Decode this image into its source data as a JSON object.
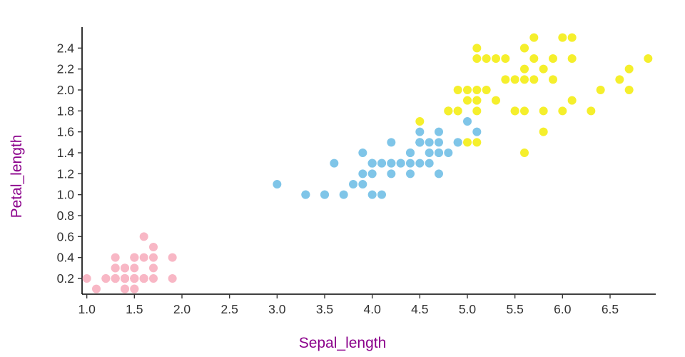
{
  "chart_data": {
    "type": "scatter",
    "title": "",
    "xlabel": "Sepal_length",
    "ylabel": "Petal_length",
    "xlim": [
      0.95,
      6.95
    ],
    "ylim": [
      0.05,
      2.6
    ],
    "x_ticks": [
      1.0,
      1.5,
      2.0,
      2.5,
      3.0,
      3.5,
      4.0,
      4.5,
      5.0,
      5.5,
      6.0,
      6.5
    ],
    "y_ticks": [
      0.2,
      0.4,
      0.6,
      0.8,
      1.0,
      1.2,
      1.4,
      1.6,
      1.8,
      2.0,
      2.2,
      2.4
    ],
    "grid": false,
    "legend_position": "none",
    "marker_radius": 6,
    "series": [
      {
        "name": "pink-cluster",
        "color": "#f8b7c5",
        "points": [
          [
            1.4,
            0.2
          ],
          [
            1.4,
            0.2
          ],
          [
            1.3,
            0.2
          ],
          [
            1.5,
            0.2
          ],
          [
            1.4,
            0.2
          ],
          [
            1.7,
            0.4
          ],
          [
            1.4,
            0.3
          ],
          [
            1.5,
            0.2
          ],
          [
            1.4,
            0.2
          ],
          [
            1.5,
            0.1
          ],
          [
            1.5,
            0.2
          ],
          [
            1.6,
            0.2
          ],
          [
            1.4,
            0.1
          ],
          [
            1.1,
            0.1
          ],
          [
            1.2,
            0.2
          ],
          [
            1.5,
            0.4
          ],
          [
            1.3,
            0.4
          ],
          [
            1.4,
            0.3
          ],
          [
            1.7,
            0.3
          ],
          [
            1.5,
            0.3
          ],
          [
            1.7,
            0.2
          ],
          [
            1.5,
            0.4
          ],
          [
            1.0,
            0.2
          ],
          [
            1.7,
            0.5
          ],
          [
            1.9,
            0.2
          ],
          [
            1.6,
            0.2
          ],
          [
            1.6,
            0.4
          ],
          [
            1.5,
            0.2
          ],
          [
            1.4,
            0.2
          ],
          [
            1.6,
            0.2
          ],
          [
            1.6,
            0.2
          ],
          [
            1.5,
            0.4
          ],
          [
            1.5,
            0.1
          ],
          [
            1.4,
            0.2
          ],
          [
            1.5,
            0.2
          ],
          [
            1.2,
            0.2
          ],
          [
            1.3,
            0.2
          ],
          [
            1.4,
            0.1
          ],
          [
            1.3,
            0.2
          ],
          [
            1.5,
            0.2
          ],
          [
            1.3,
            0.3
          ],
          [
            1.3,
            0.3
          ],
          [
            1.3,
            0.2
          ],
          [
            1.6,
            0.6
          ],
          [
            1.9,
            0.4
          ],
          [
            1.4,
            0.3
          ],
          [
            1.6,
            0.2
          ],
          [
            1.4,
            0.2
          ],
          [
            1.5,
            0.2
          ],
          [
            1.4,
            0.2
          ]
        ]
      },
      {
        "name": "blue-cluster",
        "color": "#7fc5e8",
        "points": [
          [
            4.7,
            1.4
          ],
          [
            4.5,
            1.5
          ],
          [
            4.9,
            1.5
          ],
          [
            4.0,
            1.3
          ],
          [
            4.6,
            1.5
          ],
          [
            4.5,
            1.3
          ],
          [
            4.7,
            1.6
          ],
          [
            3.3,
            1.0
          ],
          [
            4.6,
            1.3
          ],
          [
            3.9,
            1.4
          ],
          [
            3.5,
            1.0
          ],
          [
            4.2,
            1.5
          ],
          [
            4.0,
            1.0
          ],
          [
            4.7,
            1.4
          ],
          [
            3.6,
            1.3
          ],
          [
            4.4,
            1.4
          ],
          [
            4.5,
            1.5
          ],
          [
            4.1,
            1.0
          ],
          [
            4.5,
            1.5
          ],
          [
            3.9,
            1.1
          ],
          [
            4.8,
            1.8
          ],
          [
            4.0,
            1.3
          ],
          [
            4.9,
            1.5
          ],
          [
            4.7,
            1.2
          ],
          [
            4.3,
            1.3
          ],
          [
            4.4,
            1.4
          ],
          [
            4.8,
            1.4
          ],
          [
            5.0,
            1.7
          ],
          [
            4.5,
            1.5
          ],
          [
            3.5,
            1.0
          ],
          [
            3.8,
            1.1
          ],
          [
            3.7,
            1.0
          ],
          [
            3.9,
            1.2
          ],
          [
            5.1,
            1.6
          ],
          [
            4.5,
            1.5
          ],
          [
            4.5,
            1.6
          ],
          [
            4.7,
            1.5
          ],
          [
            4.4,
            1.3
          ],
          [
            4.1,
            1.3
          ],
          [
            4.0,
            1.3
          ],
          [
            4.4,
            1.2
          ],
          [
            4.6,
            1.4
          ],
          [
            4.0,
            1.2
          ],
          [
            3.3,
            1.0
          ],
          [
            4.2,
            1.3
          ],
          [
            4.2,
            1.2
          ],
          [
            4.2,
            1.3
          ],
          [
            4.3,
            1.3
          ],
          [
            3.0,
            1.1
          ],
          [
            4.1,
            1.3
          ]
        ]
      },
      {
        "name": "yellow-cluster",
        "color": "#f5ef2c",
        "points": [
          [
            6.0,
            2.5
          ],
          [
            5.1,
            1.9
          ],
          [
            5.9,
            2.1
          ],
          [
            5.6,
            1.8
          ],
          [
            5.8,
            2.2
          ],
          [
            6.6,
            2.1
          ],
          [
            4.5,
            1.7
          ],
          [
            6.3,
            1.8
          ],
          [
            5.8,
            1.8
          ],
          [
            6.1,
            2.5
          ],
          [
            5.1,
            2.0
          ],
          [
            5.3,
            1.9
          ],
          [
            5.5,
            2.1
          ],
          [
            5.0,
            2.0
          ],
          [
            5.1,
            2.4
          ],
          [
            5.3,
            2.3
          ],
          [
            5.5,
            1.8
          ],
          [
            6.7,
            2.2
          ],
          [
            6.9,
            2.3
          ],
          [
            5.0,
            1.5
          ],
          [
            5.7,
            2.3
          ],
          [
            4.9,
            2.0
          ],
          [
            6.7,
            2.0
          ],
          [
            4.9,
            1.8
          ],
          [
            5.7,
            2.1
          ],
          [
            6.0,
            1.8
          ],
          [
            4.8,
            1.8
          ],
          [
            4.9,
            1.8
          ],
          [
            5.6,
            2.1
          ],
          [
            5.8,
            1.6
          ],
          [
            6.1,
            1.9
          ],
          [
            6.4,
            2.0
          ],
          [
            5.6,
            2.2
          ],
          [
            5.1,
            1.5
          ],
          [
            5.6,
            1.4
          ],
          [
            6.1,
            2.3
          ],
          [
            5.6,
            2.4
          ],
          [
            5.5,
            1.8
          ],
          [
            4.8,
            1.8
          ],
          [
            5.4,
            2.1
          ],
          [
            5.6,
            2.4
          ],
          [
            5.1,
            2.3
          ],
          [
            5.1,
            1.9
          ],
          [
            5.9,
            2.3
          ],
          [
            5.7,
            2.5
          ],
          [
            5.2,
            2.3
          ],
          [
            5.0,
            1.9
          ],
          [
            5.2,
            2.0
          ],
          [
            5.4,
            2.3
          ],
          [
            5.1,
            1.8
          ]
        ]
      }
    ]
  }
}
